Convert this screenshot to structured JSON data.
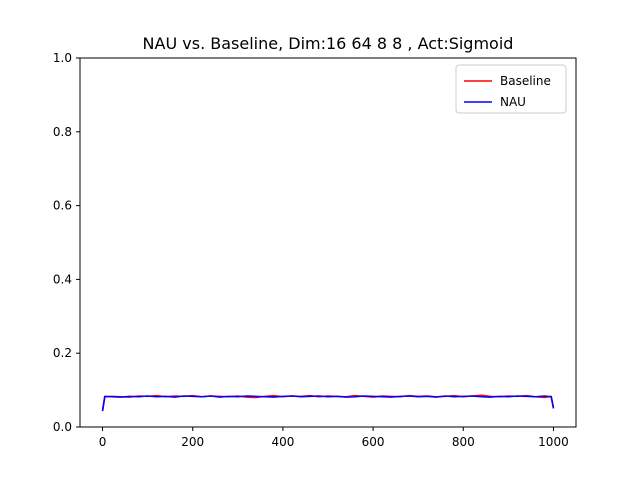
{
  "chart_data": {
    "type": "line",
    "title": "NAU vs. Baseline, Dim:16 64 8 8 , Act:Sigmoid",
    "xlabel": "",
    "ylabel": "",
    "xlim": [
      -50,
      1050
    ],
    "ylim": [
      0.0,
      1.0
    ],
    "xticks": [
      0,
      200,
      400,
      600,
      800,
      1000
    ],
    "xtick_labels": [
      "0",
      "200",
      "400",
      "600",
      "800",
      "1000"
    ],
    "yticks": [
      0.0,
      0.2,
      0.4,
      0.6,
      0.8,
      1.0
    ],
    "ytick_labels": [
      "0.0",
      "0.2",
      "0.4",
      "0.6",
      "0.8",
      "1.0"
    ],
    "grid": false,
    "legend_position": "top-right",
    "x": [
      0,
      5,
      20,
      40,
      60,
      80,
      100,
      120,
      140,
      160,
      180,
      200,
      220,
      240,
      260,
      280,
      300,
      320,
      340,
      360,
      380,
      400,
      420,
      440,
      460,
      480,
      500,
      520,
      540,
      560,
      580,
      600,
      620,
      640,
      660,
      680,
      700,
      720,
      740,
      760,
      780,
      800,
      820,
      840,
      860,
      880,
      900,
      920,
      940,
      960,
      980,
      995,
      1000
    ],
    "series": [
      {
        "name": "Baseline",
        "color": "#ff0000",
        "values": [
          0.045,
          0.082,
          0.083,
          0.082,
          0.081,
          0.084,
          0.083,
          0.085,
          0.082,
          0.084,
          0.083,
          0.085,
          0.082,
          0.084,
          0.083,
          0.082,
          0.084,
          0.081,
          0.08,
          0.083,
          0.085,
          0.082,
          0.084,
          0.083,
          0.085,
          0.082,
          0.084,
          0.083,
          0.082,
          0.085,
          0.083,
          0.081,
          0.084,
          0.083,
          0.082,
          0.085,
          0.083,
          0.084,
          0.082,
          0.083,
          0.085,
          0.082,
          0.084,
          0.086,
          0.083,
          0.082,
          0.084,
          0.083,
          0.085,
          0.082,
          0.08,
          0.083,
          0.05
        ]
      },
      {
        "name": "NAU",
        "color": "#0000ff",
        "values": [
          0.043,
          0.083,
          0.082,
          0.081,
          0.083,
          0.082,
          0.084,
          0.082,
          0.083,
          0.081,
          0.084,
          0.083,
          0.082,
          0.084,
          0.081,
          0.083,
          0.082,
          0.084,
          0.083,
          0.082,
          0.081,
          0.083,
          0.084,
          0.082,
          0.083,
          0.084,
          0.082,
          0.083,
          0.081,
          0.082,
          0.084,
          0.083,
          0.082,
          0.081,
          0.083,
          0.084,
          0.082,
          0.083,
          0.081,
          0.084,
          0.082,
          0.083,
          0.084,
          0.082,
          0.081,
          0.083,
          0.082,
          0.084,
          0.083,
          0.082,
          0.084,
          0.082,
          0.052
        ]
      }
    ]
  }
}
